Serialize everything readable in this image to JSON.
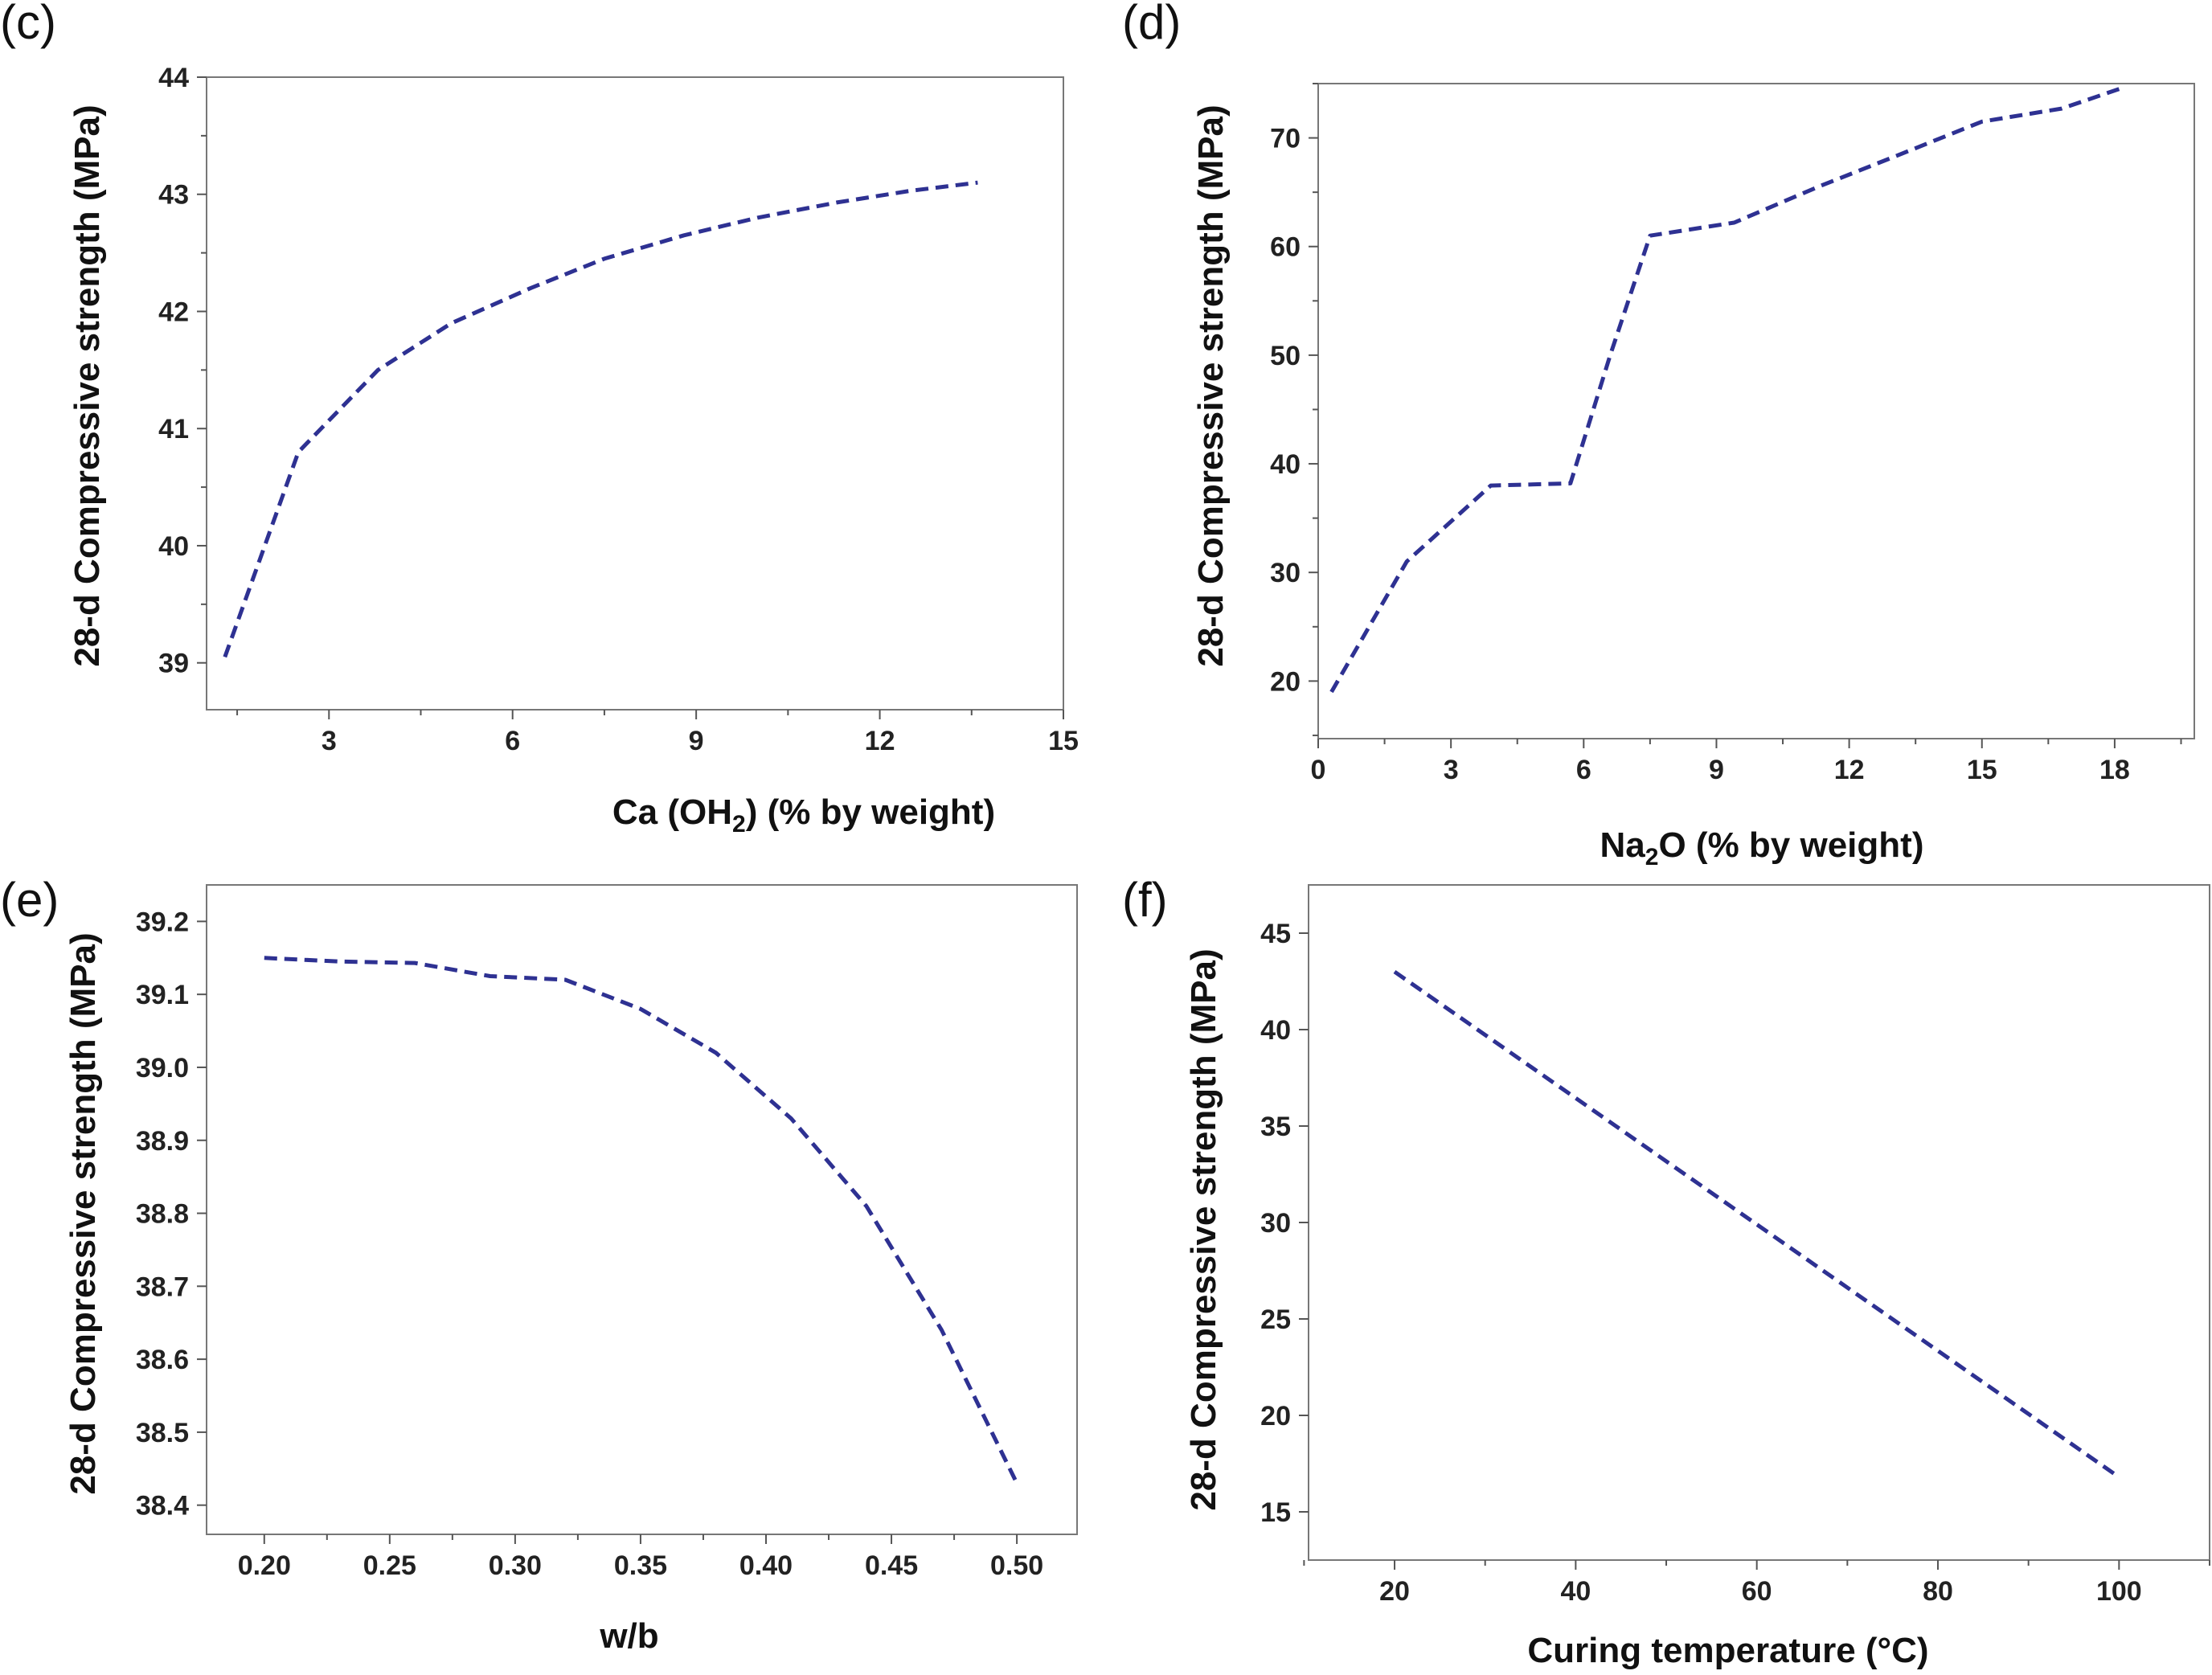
{
  "chart_data": [
    {
      "panel": "(c)",
      "type": "line",
      "title": "",
      "xlabel": "Ca (OH₂) (% by weight)",
      "xlabel_main": "Ca (OH",
      "xlabel_sub": "2",
      "xlabel_rest": ") (% by weight)",
      "ylabel": "28-d Compressive strength (MPa)",
      "xlim": [
        1,
        15
      ],
      "ylim": [
        38.6,
        44
      ],
      "xticks": [
        3,
        6,
        9,
        12,
        15
      ],
      "yticks": [
        39,
        40,
        41,
        42,
        43,
        44
      ],
      "xtick_labels": [
        "3",
        "6",
        "9",
        "12",
        "15"
      ],
      "ytick_labels": [
        "39",
        "40",
        "41",
        "42",
        "43",
        "44"
      ],
      "x_minor": [
        1.5,
        4.5,
        7.5,
        10.5,
        13.5
      ],
      "y_minor": [
        39.5,
        40.5,
        41.5,
        42.5,
        43.5
      ],
      "grid": false,
      "series": [
        {
          "name": "",
          "x": [
            1.3,
            2.5,
            3.8,
            5.0,
            6.3,
            7.5,
            8.8,
            10.0,
            11.3,
            12.5,
            13.6
          ],
          "y": [
            39.05,
            40.8,
            41.5,
            41.9,
            42.2,
            42.45,
            42.65,
            42.8,
            42.93,
            43.03,
            43.1
          ]
        }
      ]
    },
    {
      "panel": "(d)",
      "type": "line",
      "title": "",
      "xlabel": "Na₂O (% by weight)",
      "xlabel_main": "Na",
      "xlabel_sub": "2",
      "xlabel_rest": "O (% by weight)",
      "ylabel": "28-d Compressive strength (MPa)",
      "xlim": [
        0,
        19.8
      ],
      "ylim": [
        14.7,
        75
      ],
      "xticks": [
        0,
        3,
        6,
        9,
        12,
        15,
        18
      ],
      "yticks": [
        20,
        30,
        40,
        50,
        60,
        70
      ],
      "xtick_labels": [
        "0",
        "3",
        "6",
        "9",
        "12",
        "15",
        "18"
      ],
      "ytick_labels": [
        "20",
        "30",
        "40",
        "50",
        "60",
        "70"
      ],
      "x_minor": [
        1.5,
        4.5,
        7.5,
        10.5,
        13.5,
        16.5,
        19.5
      ],
      "y_minor": [
        15,
        25,
        35,
        45,
        55,
        65,
        75
      ],
      "grid": false,
      "series": [
        {
          "name": "",
          "x": [
            0.3,
            2.0,
            3.9,
            5.7,
            6.6,
            7.5,
            9.4,
            11.3,
            13.1,
            15.0,
            16.8,
            18.1
          ],
          "y": [
            19.0,
            31.0,
            38.0,
            38.2,
            50.0,
            61.0,
            62.2,
            65.5,
            68.4,
            71.5,
            72.7,
            74.5
          ]
        }
      ]
    },
    {
      "panel": "(e)",
      "type": "line",
      "title": "",
      "xlabel": "w/b",
      "ylabel": "28-d Compressive strength (MPa)",
      "xlim": [
        0.177,
        0.524
      ],
      "ylim": [
        38.36,
        39.25
      ],
      "xticks": [
        0.2,
        0.25,
        0.3,
        0.35,
        0.4,
        0.45,
        0.5
      ],
      "yticks": [
        38.4,
        38.5,
        38.6,
        38.7,
        38.8,
        38.9,
        39.0,
        39.1,
        39.2
      ],
      "xtick_labels": [
        "0.20",
        "0.25",
        "0.30",
        "0.35",
        "0.40",
        "0.45",
        "0.50"
      ],
      "ytick_labels": [
        "38.4",
        "38.5",
        "38.6",
        "38.7",
        "38.8",
        "38.9",
        "39.0",
        "39.1",
        "39.2"
      ],
      "x_minor": [
        0.225,
        0.275,
        0.325,
        0.375,
        0.425,
        0.475
      ],
      "y_minor": [],
      "grid": false,
      "series": [
        {
          "name": "",
          "x": [
            0.2,
            0.23,
            0.26,
            0.29,
            0.32,
            0.35,
            0.38,
            0.41,
            0.44,
            0.47,
            0.5
          ],
          "y": [
            39.15,
            39.145,
            39.143,
            39.125,
            39.12,
            39.08,
            39.02,
            38.93,
            38.81,
            38.64,
            38.43
          ]
        }
      ]
    },
    {
      "panel": "(f)",
      "type": "line",
      "title": "",
      "xlabel": "Curing temperature (°C)",
      "ylabel": "28-d Compressive strength (MPa)",
      "xlim": [
        10.5,
        110
      ],
      "ylim": [
        12.5,
        47.5
      ],
      "xticks": [
        20,
        40,
        60,
        80,
        100
      ],
      "yticks": [
        15,
        20,
        25,
        30,
        35,
        40,
        45
      ],
      "xtick_labels": [
        "20",
        "40",
        "60",
        "80",
        "100"
      ],
      "ytick_labels": [
        "15",
        "20",
        "25",
        "30",
        "35",
        "40",
        "45"
      ],
      "x_minor": [
        10,
        30,
        50,
        70,
        90,
        110
      ],
      "y_minor": [],
      "grid": false,
      "series": [
        {
          "name": "",
          "x": [
            20,
            100
          ],
          "y": [
            43,
            16.8
          ]
        }
      ]
    }
  ]
}
